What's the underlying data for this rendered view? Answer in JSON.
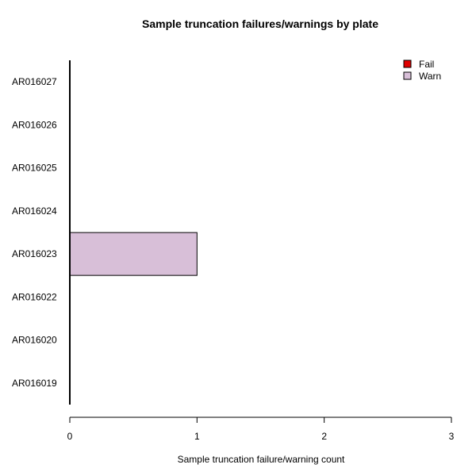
{
  "chart_data": {
    "type": "bar",
    "orientation": "horizontal",
    "stacked": true,
    "title": "Sample truncation failures/warnings by plate",
    "xlabel": "Sample truncation failure/warning count",
    "ylabel": "",
    "categories": [
      "AR016019",
      "AR016020",
      "AR016022",
      "AR016023",
      "AR016024",
      "AR016025",
      "AR016026",
      "AR016027"
    ],
    "series": [
      {
        "name": "Fail",
        "color": "#e00000",
        "values": [
          0,
          0,
          0,
          0,
          0,
          0,
          0,
          0
        ]
      },
      {
        "name": "Warn",
        "color": "#d8bfd8",
        "values": [
          0,
          0,
          0,
          1,
          0,
          0,
          0,
          0
        ]
      }
    ],
    "xlim": [
      0,
      3
    ],
    "xticks": [
      0,
      1,
      2,
      3
    ],
    "grid": false,
    "legend_position": "top-right"
  }
}
